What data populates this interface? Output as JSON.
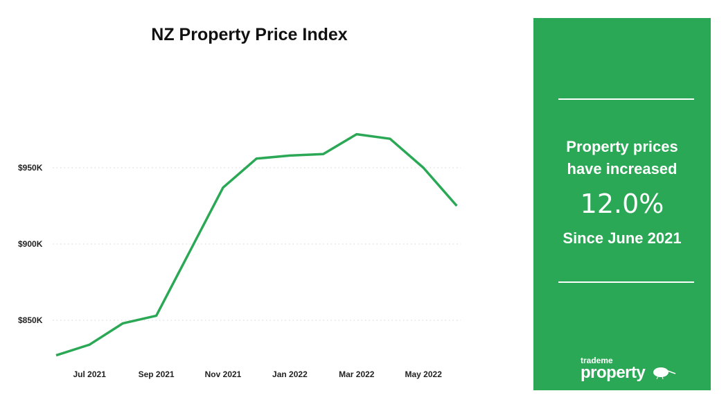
{
  "chart_data": {
    "type": "line",
    "title": "NZ Property Price Index",
    "xlabel": "",
    "ylabel": "",
    "x": [
      "Jun 2021",
      "Jul 2021",
      "Aug 2021",
      "Sep 2021",
      "Oct 2021",
      "Nov 2021",
      "Dec 2021",
      "Jan 2022",
      "Feb 2022",
      "Mar 2022",
      "Apr 2022",
      "May 2022",
      "Jun 2022"
    ],
    "values": [
      827,
      834,
      848,
      853,
      895,
      937,
      956,
      958,
      959,
      972,
      969,
      950,
      925
    ],
    "unit": "$K",
    "x_tick_labels": [
      "Jul 2021",
      "Sep 2021",
      "Nov 2021",
      "Jan 2022",
      "Mar 2022",
      "May 2022"
    ],
    "y_ticks": [
      850,
      900,
      950
    ],
    "y_tick_labels": [
      "$850K",
      "$900K",
      "$950K"
    ],
    "ylim": [
      820,
      980
    ],
    "grid": "horizontal dotted",
    "line_color": "#2aa855"
  },
  "panel": {
    "line1": "Property prices",
    "line2": "have increased",
    "percent": "12.0%",
    "since": "Since June 2021",
    "logo_small": "trademe",
    "logo_big": "property",
    "background": "#2aa855"
  }
}
